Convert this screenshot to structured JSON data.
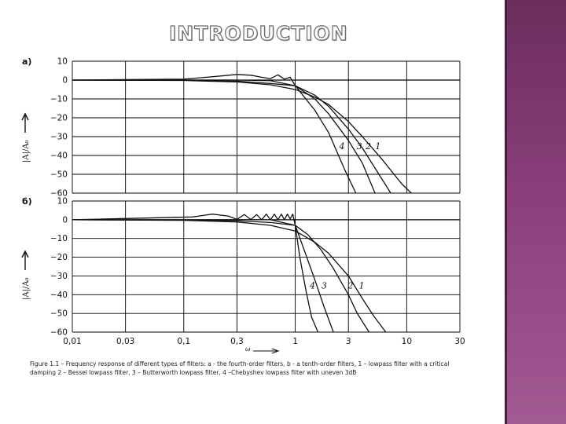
{
  "slide": {
    "title": "INTRODUCTION",
    "caption": "Figure 1.1 – Frequency response of different types of filters: a - the fourth-order filters, b - a tenth-order filters, 1 – lowpass filter with a critical damping 2 – Bessel lowpass filter, 3 – Butterworth lowpass filter, 4 –Chebyshev lowpass filter with uneven 3dB",
    "accent_color": "#8a3f7a"
  },
  "chart_data": [
    {
      "type": "line",
      "panel_label": "a)",
      "ylabel": "|A|/A₀",
      "xscale": "log",
      "xlim": [
        0.01,
        30
      ],
      "ylim": [
        -60,
        10
      ],
      "yticks": [
        "10",
        "0",
        "−10",
        "−20",
        "−30",
        "−40",
        "−50",
        "−60"
      ],
      "ytick_values": [
        10,
        0,
        -10,
        -20,
        -30,
        -40,
        -50,
        -60
      ],
      "grid": true,
      "series": [
        {
          "name": "1",
          "x": [
            0.01,
            0.1,
            0.3,
            0.6,
            1,
            1.5,
            2,
            3,
            4,
            6,
            9,
            11
          ],
          "y": [
            0,
            -0.2,
            -1,
            -2.5,
            -5,
            -9,
            -13,
            -22,
            -30,
            -42,
            -55,
            -60
          ]
        },
        {
          "name": "2",
          "x": [
            0.01,
            0.1,
            0.3,
            0.6,
            1,
            1.5,
            2,
            3,
            4,
            5.5,
            7.2
          ],
          "y": [
            0,
            -0.1,
            -0.6,
            -1.8,
            -3,
            -8,
            -14,
            -26,
            -36,
            -49,
            -60
          ]
        },
        {
          "name": "3",
          "x": [
            0.01,
            0.1,
            0.3,
            0.6,
            1,
            1.5,
            2,
            3,
            4,
            5.2
          ],
          "y": [
            0,
            0,
            0,
            -0.3,
            -3,
            -10,
            -18,
            -32,
            -44,
            -60
          ]
        },
        {
          "name": "4",
          "x": [
            0.01,
            0.1,
            0.2,
            0.3,
            0.4,
            0.5,
            0.6,
            0.7,
            0.8,
            0.9,
            1,
            1.5,
            2,
            2.8,
            3.5
          ],
          "y": [
            0,
            0.5,
            2,
            3,
            2.6,
            1.5,
            0.8,
            2.8,
            0.5,
            1.5,
            -3,
            -16,
            -28,
            -48,
            -60
          ]
        }
      ]
    },
    {
      "type": "line",
      "panel_label": "б)",
      "ylabel": "|A|/A₀",
      "xlabel": "ω",
      "xscale": "log",
      "xlim": [
        0.01,
        30
      ],
      "xticks": [
        "0,01",
        "0,03",
        "0,1",
        "0,3",
        "1",
        "3",
        "10",
        "30"
      ],
      "xtick_values": [
        0.01,
        0.03,
        0.1,
        0.3,
        1,
        3,
        10,
        30
      ],
      "ylim": [
        -60,
        10
      ],
      "yticks": [
        "10",
        "0",
        "−10",
        "−20",
        "−30",
        "−40",
        "−50",
        "−60"
      ],
      "ytick_values": [
        10,
        0,
        -10,
        -20,
        -30,
        -40,
        -50,
        -60
      ],
      "grid": true,
      "series": [
        {
          "name": "1",
          "x": [
            0.01,
            0.1,
            0.3,
            0.6,
            1,
            1.5,
            2,
            3,
            4,
            5,
            6.5
          ],
          "y": [
            0,
            -0.3,
            -1.2,
            -3,
            -6,
            -12,
            -18,
            -30,
            -42,
            -51,
            -60
          ]
        },
        {
          "name": "2",
          "x": [
            0.01,
            0.1,
            0.3,
            0.6,
            1,
            1.3,
            1.7,
            2.2,
            3,
            3.6,
            4.6
          ],
          "y": [
            0,
            -0.1,
            -0.5,
            -1.5,
            -3,
            -8,
            -16,
            -26,
            -40,
            -50,
            -60
          ]
        },
        {
          "name": "3",
          "x": [
            0.01,
            0.1,
            0.3,
            0.6,
            1,
            1.2,
            1.5,
            1.8,
            2.2
          ],
          "y": [
            0,
            0,
            0,
            0,
            -3,
            -16,
            -32,
            -46,
            -60
          ]
        },
        {
          "name": "4",
          "x": [
            0.01,
            0.12,
            0.18,
            0.25,
            0.3,
            0.35,
            0.4,
            0.45,
            0.5,
            0.55,
            0.6,
            0.65,
            0.7,
            0.75,
            0.8,
            0.85,
            0.9,
            0.95,
            1,
            1.1,
            1.25,
            1.4,
            1.6
          ],
          "y": [
            0,
            1.5,
            3,
            2,
            0.2,
            2.8,
            0.1,
            2.8,
            0,
            3,
            0,
            3,
            0,
            3,
            0,
            3,
            0.5,
            3,
            -3,
            -20,
            -38,
            -52,
            -60
          ]
        }
      ]
    }
  ]
}
